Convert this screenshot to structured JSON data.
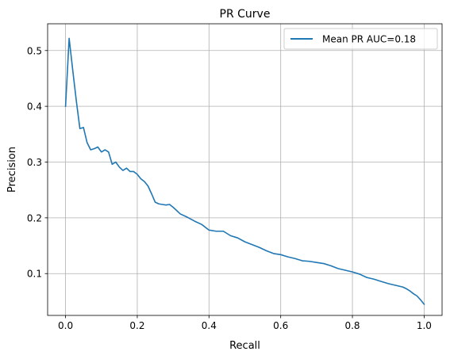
{
  "chart_data": {
    "type": "line",
    "title": "PR Curve",
    "xlabel": "Recall",
    "ylabel": "Precision",
    "xlim": [
      -0.05,
      1.05
    ],
    "ylim": [
      0.025,
      0.548
    ],
    "grid": true,
    "legend_position": "top-right",
    "x_ticks": [
      0.0,
      0.2,
      0.4,
      0.6,
      0.8,
      1.0
    ],
    "x_tick_labels": [
      "0.0",
      "0.2",
      "0.4",
      "0.6",
      "0.8",
      "1.0"
    ],
    "y_ticks": [
      0.1,
      0.2,
      0.3,
      0.4,
      0.5
    ],
    "y_tick_labels": [
      "0.1",
      "0.2",
      "0.3",
      "0.4",
      "0.5"
    ],
    "series": [
      {
        "name": "Mean PR AUC=0.18",
        "color": "#1f77b4",
        "x": [
          0.0,
          0.01,
          0.02,
          0.03,
          0.04,
          0.05,
          0.06,
          0.07,
          0.08,
          0.09,
          0.1,
          0.11,
          0.12,
          0.13,
          0.14,
          0.15,
          0.16,
          0.17,
          0.18,
          0.19,
          0.2,
          0.21,
          0.22,
          0.23,
          0.24,
          0.25,
          0.26,
          0.27,
          0.28,
          0.29,
          0.3,
          0.32,
          0.34,
          0.36,
          0.38,
          0.4,
          0.42,
          0.44,
          0.46,
          0.48,
          0.5,
          0.52,
          0.54,
          0.56,
          0.58,
          0.6,
          0.62,
          0.64,
          0.66,
          0.68,
          0.7,
          0.72,
          0.74,
          0.76,
          0.78,
          0.8,
          0.82,
          0.84,
          0.86,
          0.88,
          0.9,
          0.92,
          0.94,
          0.95,
          0.96,
          0.97,
          0.98,
          0.99,
          1.0
        ],
        "y": [
          0.4,
          0.522,
          0.465,
          0.41,
          0.36,
          0.362,
          0.335,
          0.322,
          0.324,
          0.327,
          0.318,
          0.322,
          0.318,
          0.296,
          0.3,
          0.291,
          0.285,
          0.289,
          0.283,
          0.283,
          0.278,
          0.27,
          0.265,
          0.257,
          0.243,
          0.228,
          0.225,
          0.224,
          0.223,
          0.224,
          0.219,
          0.207,
          0.201,
          0.194,
          0.188,
          0.178,
          0.176,
          0.176,
          0.168,
          0.164,
          0.157,
          0.152,
          0.147,
          0.141,
          0.136,
          0.134,
          0.13,
          0.127,
          0.123,
          0.122,
          0.12,
          0.118,
          0.114,
          0.109,
          0.106,
          0.103,
          0.099,
          0.093,
          0.09,
          0.086,
          0.082,
          0.079,
          0.076,
          0.073,
          0.069,
          0.064,
          0.06,
          0.053,
          0.045
        ]
      }
    ]
  }
}
